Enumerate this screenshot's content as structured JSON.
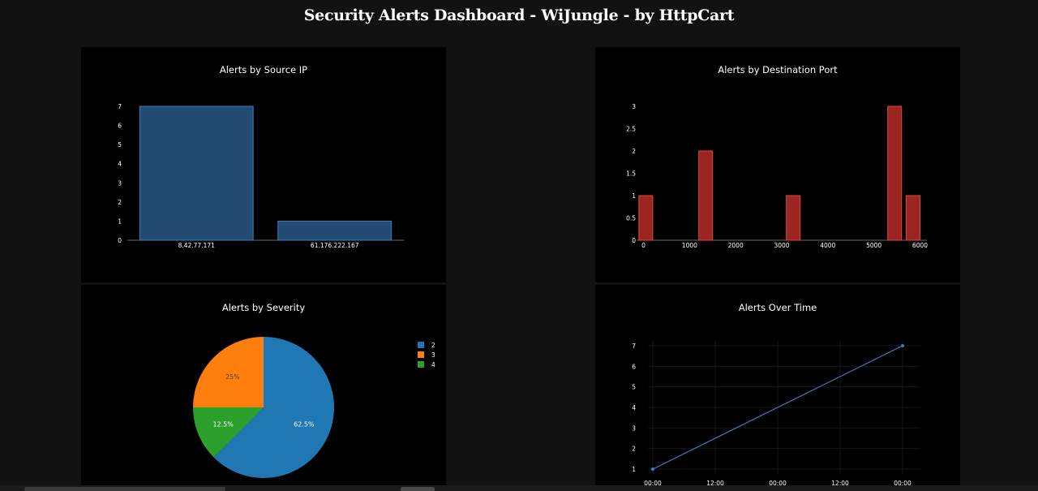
{
  "page": {
    "title": "Security Alerts Dashboard - WiJungle - by HttpCart"
  },
  "colors": {
    "background": "#121212",
    "panel": "#000000",
    "bar_blue": "#234a70",
    "bar_blue_edge": "#3d7fbf",
    "bar_red": "#9b2520",
    "bar_red_edge": "#d84a44",
    "pie_blue": "#1f77b4",
    "pie_orange": "#ff7f0e",
    "pie_green": "#2ca02c",
    "line_blue": "#3a7fc0"
  },
  "chart_data": [
    {
      "id": "source_ip",
      "type": "bar",
      "title": "Alerts by Source IP",
      "categories": [
        "8.42.77.171",
        "61.176.222.167"
      ],
      "values": [
        7,
        1
      ],
      "ylim": [
        0,
        7
      ],
      "yticks": [
        "0",
        "1",
        "2",
        "3",
        "4",
        "5",
        "6",
        "7"
      ],
      "grid": false
    },
    {
      "id": "destination_port",
      "type": "bar",
      "title": "Alerts by Destination Port",
      "bins": [
        {
          "x0": -100,
          "x1": 200,
          "count": 1
        },
        {
          "x0": 1200,
          "x1": 1500,
          "count": 2
        },
        {
          "x0": 3100,
          "x1": 3400,
          "count": 1
        },
        {
          "x0": 5300,
          "x1": 5600,
          "count": 3
        },
        {
          "x0": 5700,
          "x1": 6000,
          "count": 1
        }
      ],
      "xlim": [
        -150,
        6150
      ],
      "ylim": [
        0,
        3
      ],
      "xticks": [
        0,
        1000,
        2000,
        3000,
        4000,
        5000,
        6000
      ],
      "xtick_labels": [
        "0",
        "1000",
        "2000",
        "3000",
        "4000",
        "5000",
        "6000"
      ],
      "yticks": [
        0,
        0.5,
        1,
        1.5,
        2,
        2.5,
        3
      ],
      "ytick_labels": [
        "0",
        "0.5",
        "1",
        "1.5",
        "2",
        "2.5",
        "3"
      ],
      "grid": false
    },
    {
      "id": "severity",
      "type": "pie",
      "title": "Alerts by Severity",
      "slices": [
        {
          "label": "2",
          "value": 62.5,
          "text": "62.5%",
          "color": "#1f77b4",
          "text_color": "#ffffff"
        },
        {
          "label": "4",
          "value": 12.5,
          "text": "12.5%",
          "color": "#2ca02c",
          "text_color": "#ffffff"
        },
        {
          "label": "3",
          "value": 25,
          "text": "25%",
          "color": "#ff7f0e",
          "text_color": "#444444"
        }
      ],
      "legend": [
        "2",
        "3",
        "4"
      ],
      "legend_position": "top-right"
    },
    {
      "id": "over_time",
      "type": "line",
      "title": "Alerts Over Time",
      "points": [
        {
          "t": 0,
          "y": 1
        },
        {
          "t": 48,
          "y": 7
        }
      ],
      "xticks_hours": [
        0,
        12,
        24,
        36,
        48
      ],
      "xtick_labels": [
        "00:00",
        "12:00",
        "00:00",
        "12:00",
        "00:00"
      ],
      "xlim_hours": [
        0,
        48
      ],
      "yticks": [
        1,
        2,
        3,
        4,
        5,
        6,
        7
      ],
      "ytick_labels": [
        "1",
        "2",
        "3",
        "4",
        "5",
        "6",
        "7"
      ],
      "ylim": [
        1,
        7
      ],
      "grid": true
    }
  ]
}
